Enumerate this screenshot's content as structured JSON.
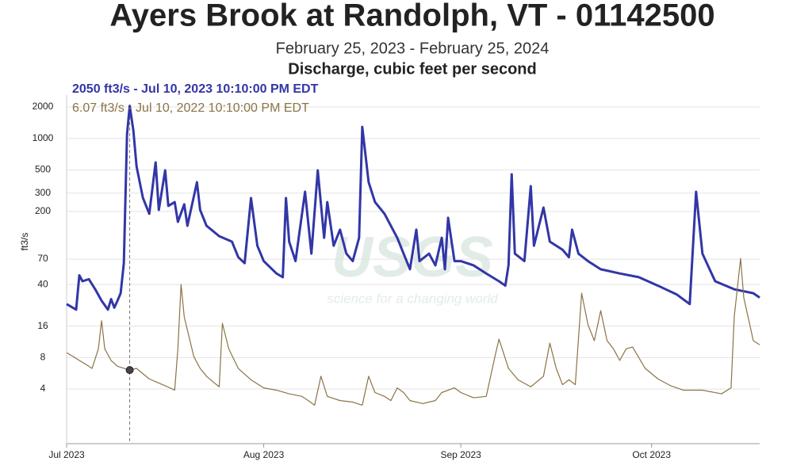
{
  "chart_data": {
    "type": "line",
    "title": "Ayers Brook at Randolph, VT - 01142500",
    "subtitle": "February 25, 2023 - February 25, 2024",
    "parameter": "Discharge, cubic feet per second",
    "y_label": "ft3/s",
    "watermark": {
      "logo": "USGS",
      "tagline": "science for a changing world"
    },
    "tooltip": [
      "2050 ft3/s - Jul 10, 2023 10:10:00 PM EDT",
      "6.07 ft3/s - Jul 10, 2022 10:10:00 PM EDT"
    ],
    "crosshair": "2023-07-10T22:10",
    "y_scale": "log",
    "grid": true,
    "xlim": [
      "2023-07-01",
      "2023-10-18"
    ],
    "xticks": [
      {
        "value": "2023-07-01",
        "label": "Jul 2023"
      },
      {
        "value": "2023-08-01",
        "label": "Aug 2023"
      },
      {
        "value": "2023-09-01",
        "label": "Sep 2023"
      },
      {
        "value": "2023-10-01",
        "label": "Oct 2023"
      }
    ],
    "ylim": [
      1.2,
      2600
    ],
    "yticks": [
      4,
      8,
      16,
      40,
      70,
      200,
      300,
      500,
      1000,
      2000
    ],
    "series": [
      {
        "name": "2023",
        "color": "#3236a6",
        "x": [
          "2023-07-01",
          "2023-07-02T12:00",
          "2023-07-03",
          "2023-07-03T12:00",
          "2023-07-04T12:00",
          "2023-07-05T12:00",
          "2023-07-06T12:00",
          "2023-07-07T12:00",
          "2023-07-08",
          "2023-07-08T12:00",
          "2023-07-09",
          "2023-07-09T12:00",
          "2023-07-10",
          "2023-07-10T12:00",
          "2023-07-10T22:10",
          "2023-07-11T12:00",
          "2023-07-12",
          "2023-07-13",
          "2023-07-14",
          "2023-07-15",
          "2023-07-15T12:00",
          "2023-07-16T12:00",
          "2023-07-17",
          "2023-07-18",
          "2023-07-18T12:00",
          "2023-07-19T12:00",
          "2023-07-20",
          "2023-07-21T12:00",
          "2023-07-22",
          "2023-07-23",
          "2023-07-25",
          "2023-07-27",
          "2023-07-28",
          "2023-07-29",
          "2023-07-30",
          "2023-07-31",
          "2023-08-01",
          "2023-08-03",
          "2023-08-04",
          "2023-08-04T12:00",
          "2023-08-05",
          "2023-08-06",
          "2023-08-07T12:00",
          "2023-08-08T12:00",
          "2023-08-09T12:00",
          "2023-08-10T12:00",
          "2023-08-11",
          "2023-08-12",
          "2023-08-13",
          "2023-08-14",
          "2023-08-15",
          "2023-08-16",
          "2023-08-16T12:00",
          "2023-08-17T12:00",
          "2023-08-18T12:00",
          "2023-08-20",
          "2023-08-22",
          "2023-08-23",
          "2023-08-24",
          "2023-08-25",
          "2023-08-25T12:00",
          "2023-08-27",
          "2023-08-28",
          "2023-08-29",
          "2023-08-29T12:00",
          "2023-08-30",
          "2023-08-31",
          "2023-09-01",
          "2023-09-03",
          "2023-09-05",
          "2023-09-07",
          "2023-09-08",
          "2023-09-08T12:00",
          "2023-09-09",
          "2023-09-09T12:00",
          "2023-09-11",
          "2023-09-12",
          "2023-09-12T12:00",
          "2023-09-14",
          "2023-09-15",
          "2023-09-17",
          "2023-09-18",
          "2023-09-18T12:00",
          "2023-09-19T12:00",
          "2023-09-21",
          "2023-09-23",
          "2023-09-26",
          "2023-09-29",
          "2023-10-02",
          "2023-10-05",
          "2023-10-07",
          "2023-10-08",
          "2023-10-09",
          "2023-10-11",
          "2023-10-14",
          "2023-10-17",
          "2023-10-18"
        ],
        "values": [
          26,
          23,
          49,
          43,
          45,
          36,
          28,
          23,
          29,
          24,
          28,
          33,
          64,
          1090,
          2050,
          1190,
          540,
          270,
          190,
          590,
          207,
          495,
          226,
          246,
          159,
          234,
          146,
          381,
          207,
          146,
          116,
          103,
          73,
          64,
          269,
          94,
          67,
          51,
          47,
          269,
          103,
          67,
          309,
          79,
          495,
          112,
          246,
          94,
          134,
          79,
          67,
          112,
          1290,
          381,
          246,
          190,
          112,
          79,
          56,
          134,
          67,
          79,
          61,
          112,
          56,
          174,
          67,
          67,
          61,
          51,
          43,
          39,
          61,
          454,
          79,
          67,
          349,
          94,
          218,
          103,
          86,
          73,
          134,
          79,
          67,
          56,
          51,
          47,
          39,
          32,
          26,
          309,
          79,
          43,
          36,
          33,
          30
        ]
      },
      {
        "name": "2022",
        "color": "#8b7346",
        "x": [
          "2023-07-01",
          "2023-07-02",
          "2023-07-03",
          "2023-07-04",
          "2023-07-05",
          "2023-07-06",
          "2023-07-06T12:00",
          "2023-07-07",
          "2023-07-08",
          "2023-07-09",
          "2023-07-10T22:10",
          "2023-07-12",
          "2023-07-13",
          "2023-07-14",
          "2023-07-15",
          "2023-07-16T12:00",
          "2023-07-18",
          "2023-07-18T12:00",
          "2023-07-19",
          "2023-07-19T12:00",
          "2023-07-21",
          "2023-07-22",
          "2023-07-23",
          "2023-07-24",
          "2023-07-25",
          "2023-07-25T12:00",
          "2023-07-26T12:00",
          "2023-07-28",
          "2023-07-30",
          "2023-08-01",
          "2023-08-03",
          "2023-08-05",
          "2023-08-07",
          "2023-08-08",
          "2023-08-09",
          "2023-08-10",
          "2023-08-11",
          "2023-08-13",
          "2023-08-15",
          "2023-08-16T12:00",
          "2023-08-17T12:00",
          "2023-08-18T12:00",
          "2023-08-20",
          "2023-08-21",
          "2023-08-22",
          "2023-08-23",
          "2023-08-24",
          "2023-08-26",
          "2023-08-28",
          "2023-08-29",
          "2023-08-31",
          "2023-09-01",
          "2023-09-03",
          "2023-09-05",
          "2023-09-06T12:00",
          "2023-09-07",
          "2023-09-08T12:00",
          "2023-09-10",
          "2023-09-12",
          "2023-09-14",
          "2023-09-15",
          "2023-09-16",
          "2023-09-17",
          "2023-09-18",
          "2023-09-19",
          "2023-09-20",
          "2023-09-21",
          "2023-09-22",
          "2023-09-23",
          "2023-09-24",
          "2023-09-25",
          "2023-09-26",
          "2023-09-27",
          "2023-09-28",
          "2023-09-30",
          "2023-10-02",
          "2023-10-04",
          "2023-10-06",
          "2023-10-09",
          "2023-10-12",
          "2023-10-13T12:00",
          "2023-10-14",
          "2023-10-15",
          "2023-10-15T12:00",
          "2023-10-17",
          "2023-10-18"
        ],
        "values": [
          8.9,
          8.2,
          7.5,
          6.9,
          6.3,
          9.7,
          18,
          9.7,
          7.5,
          6.6,
          6.07,
          6.3,
          5.6,
          5.0,
          4.7,
          4.3,
          3.9,
          9.7,
          40,
          19.6,
          8.2,
          6.3,
          5.3,
          4.7,
          4.2,
          17,
          9.7,
          6.3,
          4.9,
          4.1,
          3.9,
          3.6,
          3.4,
          3.1,
          2.8,
          5.3,
          3.4,
          3.1,
          3.0,
          2.8,
          5.3,
          3.7,
          3.4,
          3.1,
          4.1,
          3.7,
          3.1,
          2.9,
          3.1,
          3.7,
          4.1,
          3.7,
          3.3,
          3.4,
          8.9,
          12,
          6.3,
          4.9,
          4.2,
          5.3,
          11,
          6.3,
          4.4,
          4.9,
          4.4,
          33,
          16.5,
          11.6,
          22.5,
          11.6,
          9.7,
          7.5,
          9.7,
          10.1,
          6.3,
          5.0,
          4.3,
          3.9,
          3.9,
          3.6,
          4.1,
          19.6,
          71,
          30,
          11.6,
          10.6
        ]
      }
    ]
  }
}
